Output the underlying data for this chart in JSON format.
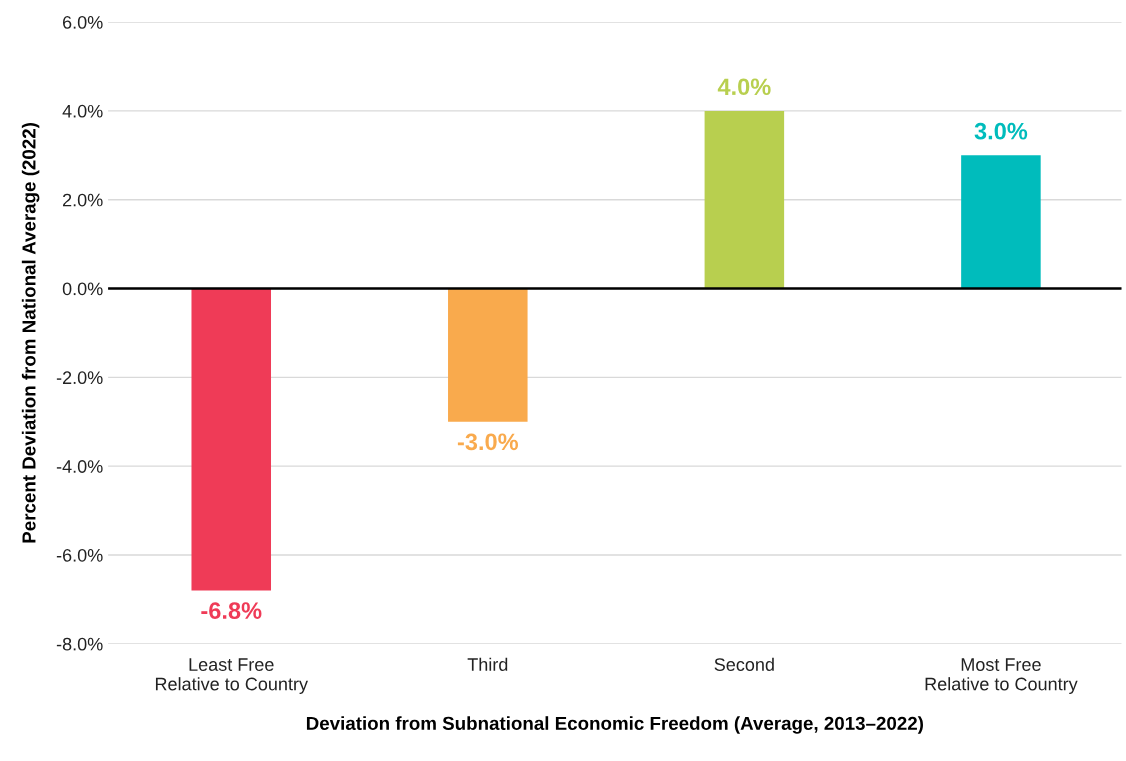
{
  "chart_data": {
    "type": "bar",
    "xlabel": "Deviation from Subnational Economic Freedom (Average, 2013–2022)",
    "ylabel": "Percent Deviation from National Average (2022)",
    "categories": [
      "Least Free\nRelative to Country",
      "Third",
      "Second",
      "Most Free\nRelative to Country"
    ],
    "values": [
      -6.8,
      -3.0,
      4.0,
      3.0
    ],
    "colors": [
      "#ef3b57",
      "#f9aa4d",
      "#b8cf4f",
      "#00bcbc"
    ],
    "value_labels": [
      "-6.8%",
      "-3.0%",
      "4.0%",
      "3.0%"
    ],
    "ylim": [
      -8,
      6
    ],
    "yticks": [
      {
        "value": -8,
        "label": "-8.0%"
      },
      {
        "value": -6,
        "label": "-6.0%"
      },
      {
        "value": -4,
        "label": "-4.0%"
      },
      {
        "value": -2,
        "label": "-2.0%"
      },
      {
        "value": 0,
        "label": "0.0%"
      },
      {
        "value": 2,
        "label": "2.0%"
      },
      {
        "value": 4,
        "label": "4.0%"
      },
      {
        "value": 6,
        "label": "6.0%"
      }
    ],
    "ref_lines": [
      {
        "axis": "y",
        "value": 0,
        "color": "#000000"
      }
    ],
    "grid": "y",
    "legend": false
  }
}
